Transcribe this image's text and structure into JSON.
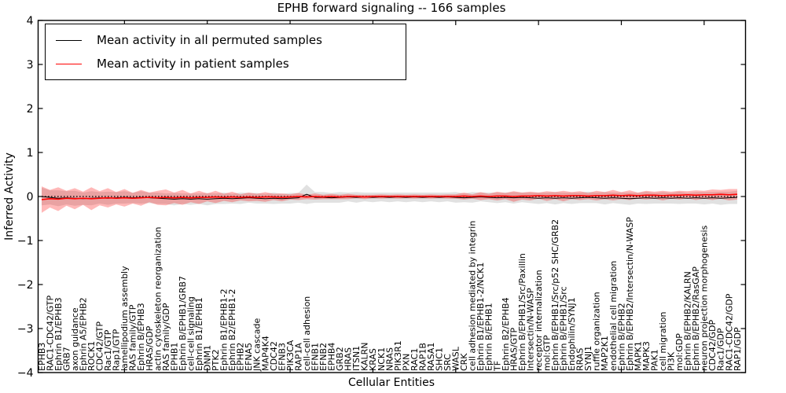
{
  "title": "EPHB forward signaling -- 166 samples",
  "legend": [
    {
      "label": "Mean activity in all permuted samples",
      "color": "#000000"
    },
    {
      "label": "Mean activity in patient samples",
      "color": "#ff0000"
    }
  ],
  "chart_data": {
    "type": "line",
    "title": "EPHB forward signaling -- 166 samples",
    "xlabel": "Cellular Entities",
    "ylabel": "Inferred Activity",
    "ylim": [
      -4,
      4
    ],
    "yticks": [
      4,
      3,
      2,
      1,
      0,
      -1,
      -2,
      -3,
      -4
    ],
    "grid": false,
    "legend_position": "upper left",
    "zero_line": {
      "style": "dotted",
      "color": "#000000",
      "y": 0
    },
    "categories": [
      "EPHB3",
      "RAC1-CDC42/GTP",
      "Ephrin B1/EPHB3",
      "GRB7",
      "axon guidance",
      "Ephrin A5/EPHB2",
      "ROCK1",
      "CDC42/GTP",
      "Rac1/GTP",
      "Rap1/GTP",
      "lamellipodium assembly",
      "RAS family/GTP",
      "Ephrin B/EPHB3",
      "HRAS/GDP",
      "actin cytoskeleton reorganization",
      "RAS family/GDP",
      "EPHB1",
      "Ephrin B/EPHB1/GRB7",
      "cell-cell signaling",
      "Ephrin B1/EPHB1",
      "DNM1",
      "PTK2",
      "Ephrin B1/EPHB1-2",
      "Ephrin B2/EPHB1-2",
      "EPHB2",
      "EFNA5",
      "JNK cascade",
      "MAP4K4",
      "CDC42",
      "EFNB3",
      "PIK3CA",
      "RAP1A",
      "cell-cell adhesion",
      "EFNB1",
      "EFNB2",
      "EPHB4",
      "GRB2",
      "HRAS",
      "ITSN1",
      "KALRN",
      "KRAS",
      "NCK1",
      "NRAS",
      "PIK3R1",
      "PXN",
      "RAC1",
      "RAP1B",
      "RASA1",
      "SHC1",
      "SRC",
      "WASL",
      "CRK",
      "cell adhesion mediated by integrin",
      "Ephrin B1/EPHB1-2/NCK1",
      "Ephrin B/EPHB1",
      "TF",
      "Ephrin B2/EPHB4",
      "HRAS/GTP",
      "Ephrin B/EPHB1/Src/Paxillin",
      "Intersectin/N-WASP",
      "receptor internalization",
      "mol:GTP",
      "Ephrin B/EPHB1/Src/p52 SHC/GRB2",
      "Ephrin B/EPHB1/Src",
      "Endophilin/SYNJ1",
      "RRAS",
      "SYNJ1",
      "ruffle organization",
      "MAP2K1",
      "endothelial cell migration",
      "Ephrin B/EPHB2",
      "Ephrin B/EPHB2/Intersectin/N-WASP",
      "MAPK1",
      "MAPK3",
      "PAK1",
      "cell migration",
      "PI3K",
      "mol:GDP",
      "Ephrin B/EPHB2/KALRN",
      "Ephrin B/EPHB2/RasGAP",
      "neuron projection morphogenesis",
      "CDC42/GDP",
      "Rac1/GDP",
      "RAC1-CDC42/GDP",
      "RAP1/GDP"
    ],
    "series": [
      {
        "name": "Mean activity in all permuted samples",
        "color": "#000000",
        "line_width": 1,
        "band_color": "#aaaaaa",
        "band_alpha": 0.35,
        "values": [
          0.0,
          -0.02,
          -0.04,
          -0.03,
          -0.04,
          -0.05,
          -0.04,
          -0.03,
          -0.04,
          -0.03,
          -0.02,
          -0.03,
          -0.02,
          -0.03,
          -0.04,
          -0.05,
          -0.06,
          -0.05,
          -0.06,
          -0.05,
          -0.06,
          -0.05,
          -0.04,
          -0.05,
          -0.04,
          -0.03,
          -0.04,
          -0.05,
          -0.04,
          -0.05,
          -0.04,
          -0.03,
          0.05,
          -0.02,
          -0.02,
          -0.03,
          -0.02,
          -0.01,
          -0.02,
          -0.01,
          -0.02,
          -0.01,
          -0.02,
          -0.01,
          -0.02,
          -0.01,
          -0.02,
          -0.01,
          -0.02,
          -0.01,
          -0.02,
          -0.03,
          -0.02,
          -0.01,
          -0.02,
          -0.03,
          -0.02,
          -0.03,
          -0.02,
          -0.03,
          -0.04,
          -0.03,
          -0.04,
          -0.03,
          -0.04,
          -0.03,
          -0.02,
          -0.03,
          -0.04,
          -0.03,
          -0.04,
          -0.05,
          -0.04,
          -0.03,
          -0.04,
          -0.03,
          -0.04,
          -0.03,
          -0.04,
          -0.03,
          -0.04,
          -0.03,
          -0.04,
          -0.03,
          -0.02
        ],
        "band": [
          0.2,
          0.16,
          0.18,
          0.15,
          0.17,
          0.14,
          0.16,
          0.13,
          0.15,
          0.13,
          0.14,
          0.12,
          0.14,
          0.12,
          0.13,
          0.12,
          0.14,
          0.12,
          0.13,
          0.12,
          0.14,
          0.12,
          0.13,
          0.11,
          0.13,
          0.11,
          0.12,
          0.11,
          0.13,
          0.11,
          0.12,
          0.11,
          0.22,
          0.12,
          0.12,
          0.11,
          0.12,
          0.1,
          0.12,
          0.1,
          0.11,
          0.1,
          0.11,
          0.1,
          0.11,
          0.1,
          0.11,
          0.1,
          0.11,
          0.1,
          0.12,
          0.1,
          0.12,
          0.1,
          0.11,
          0.12,
          0.11,
          0.13,
          0.11,
          0.12,
          0.13,
          0.12,
          0.14,
          0.12,
          0.13,
          0.12,
          0.13,
          0.12,
          0.14,
          0.12,
          0.13,
          0.14,
          0.12,
          0.14,
          0.12,
          0.13,
          0.12,
          0.14,
          0.12,
          0.13,
          0.14,
          0.13,
          0.15,
          0.14,
          0.15
        ]
      },
      {
        "name": "Mean activity in patient samples",
        "color": "#ff0000",
        "line_width": 1.6,
        "band_color": "#ff0000",
        "band_alpha": 0.28,
        "values": [
          -0.07,
          -0.05,
          -0.06,
          -0.04,
          -0.05,
          -0.04,
          -0.05,
          -0.04,
          -0.03,
          -0.04,
          -0.03,
          -0.04,
          -0.03,
          -0.02,
          -0.03,
          -0.02,
          -0.03,
          -0.02,
          -0.03,
          -0.02,
          -0.02,
          -0.01,
          -0.02,
          -0.01,
          -0.02,
          -0.01,
          -0.02,
          -0.01,
          -0.01,
          -0.02,
          -0.01,
          0.0,
          -0.01,
          0.0,
          -0.01,
          0.0,
          -0.01,
          0.0,
          0.0,
          -0.01,
          0.0,
          0.0,
          0.0,
          0.0,
          0.0,
          0.0,
          0.0,
          0.0,
          0.0,
          0.0,
          0.0,
          0.01,
          0.0,
          0.01,
          0.0,
          0.01,
          0.01,
          0.0,
          0.01,
          0.01,
          0.02,
          0.01,
          0.02,
          0.01,
          0.02,
          0.02,
          0.01,
          0.02,
          0.02,
          0.03,
          0.02,
          0.03,
          0.02,
          0.03,
          0.03,
          0.02,
          0.03,
          0.03,
          0.04,
          0.03,
          0.04,
          0.04,
          0.05,
          0.04,
          0.05
        ],
        "band": [
          0.3,
          0.2,
          0.27,
          0.17,
          0.24,
          0.15,
          0.26,
          0.16,
          0.22,
          0.14,
          0.2,
          0.12,
          0.18,
          0.11,
          0.16,
          0.18,
          0.12,
          0.17,
          0.1,
          0.15,
          0.09,
          0.14,
          0.08,
          0.12,
          0.07,
          0.1,
          0.08,
          0.11,
          0.07,
          0.09,
          0.06,
          0.08,
          0.05,
          0.07,
          0.05,
          0.06,
          0.05,
          0.06,
          0.04,
          0.05,
          0.04,
          0.05,
          0.04,
          0.05,
          0.04,
          0.05,
          0.04,
          0.05,
          0.04,
          0.05,
          0.05,
          0.08,
          0.05,
          0.09,
          0.06,
          0.1,
          0.07,
          0.12,
          0.08,
          0.1,
          0.07,
          0.11,
          0.08,
          0.12,
          0.08,
          0.1,
          0.07,
          0.11,
          0.08,
          0.12,
          0.08,
          0.11,
          0.07,
          0.1,
          0.08,
          0.11,
          0.08,
          0.1,
          0.08,
          0.11,
          0.09,
          0.12,
          0.1,
          0.13,
          0.12
        ]
      }
    ]
  }
}
